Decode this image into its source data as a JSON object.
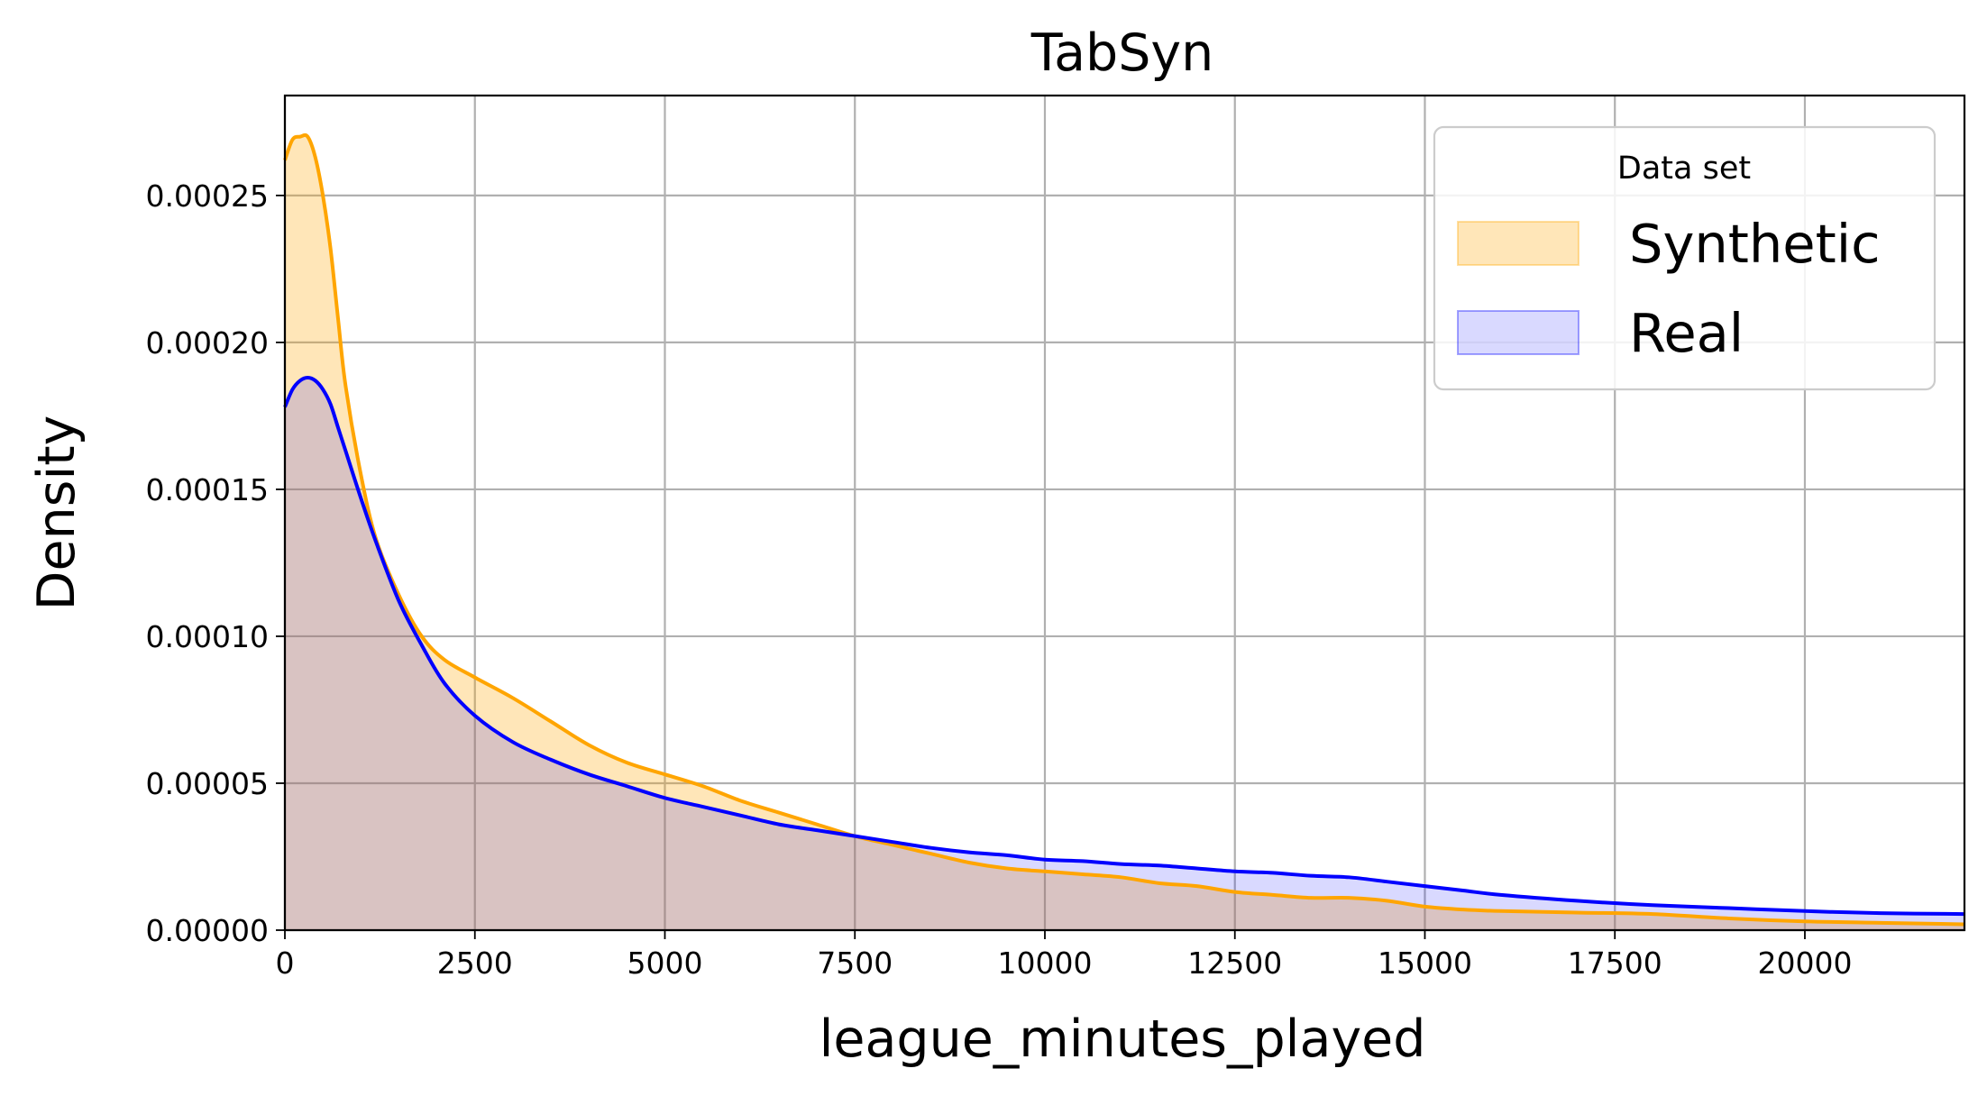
{
  "chart_data": {
    "type": "area",
    "title": "TabSyn",
    "xlabel": "league_minutes_played",
    "ylabel": "Density",
    "xlim": [
      0,
      22100
    ],
    "ylim": [
      0,
      0.000284
    ],
    "grid": true,
    "x_ticks": [
      0,
      2500,
      5000,
      7500,
      10000,
      12500,
      15000,
      17500,
      20000
    ],
    "x_tick_labels": [
      "0",
      "2500",
      "5000",
      "7500",
      "10000",
      "12500",
      "15000",
      "17500",
      "20000"
    ],
    "y_ticks": [
      0,
      5e-05,
      0.0001,
      0.00015,
      0.0002,
      0.00025
    ],
    "y_tick_labels": [
      "0.00000",
      "0.00005",
      "0.00010",
      "0.00015",
      "0.00020",
      "0.00025"
    ],
    "legend": {
      "title": "Data set",
      "position": "top-right"
    },
    "series": [
      {
        "name": "Synthetic",
        "line_color": "#FFA500",
        "fill_color": "#FFA500",
        "fill_opacity": 0.28,
        "x": [
          0,
          100,
          200,
          300,
          400,
          500,
          600,
          700,
          800,
          1000,
          1200,
          1500,
          1800,
          2100,
          2500,
          3000,
          3500,
          4000,
          4500,
          5000,
          5500,
          6000,
          6500,
          7000,
          7500,
          8000,
          8500,
          9000,
          9500,
          10000,
          10500,
          11000,
          11500,
          12000,
          12500,
          13000,
          13500,
          14000,
          14500,
          15000,
          15500,
          16000,
          17000,
          18000,
          19000,
          20000,
          21000,
          22100
        ],
        "y": [
          0.000262,
          0.000269,
          0.00027,
          0.00027,
          0.000263,
          0.00025,
          0.000232,
          0.000208,
          0.000185,
          0.000155,
          0.000133,
          0.000114,
          0.0001,
          9.2e-05,
          8.6e-05,
          7.9e-05,
          7.1e-05,
          6.3e-05,
          5.7e-05,
          5.3e-05,
          4.9e-05,
          4.4e-05,
          4e-05,
          3.6e-05,
          3.2e-05,
          2.9e-05,
          2.6e-05,
          2.3e-05,
          2.1e-05,
          2e-05,
          1.9e-05,
          1.8e-05,
          1.6e-05,
          1.5e-05,
          1.3e-05,
          1.2e-05,
          1.1e-05,
          1.1e-05,
          1e-05,
          8e-06,
          7e-06,
          6.5e-06,
          6e-06,
          5.5e-06,
          4e-06,
          3e-06,
          2.5e-06,
          2e-06
        ]
      },
      {
        "name": "Real",
        "line_color": "#0000FF",
        "fill_color": "#0000FF",
        "fill_opacity": 0.15,
        "x": [
          0,
          100,
          200,
          300,
          400,
          500,
          600,
          700,
          800,
          1000,
          1200,
          1500,
          1800,
          2100,
          2500,
          3000,
          3500,
          4000,
          4500,
          5000,
          5500,
          6000,
          6500,
          7000,
          7500,
          8000,
          8500,
          9000,
          9500,
          10000,
          10500,
          11000,
          11500,
          12000,
          12500,
          13000,
          13500,
          14000,
          14500,
          15000,
          15500,
          16000,
          17000,
          18000,
          19000,
          20000,
          21000,
          22100
        ],
        "y": [
          0.000178,
          0.000184,
          0.000187,
          0.000188,
          0.000187,
          0.000184,
          0.000179,
          0.000171,
          0.000163,
          0.000147,
          0.000132,
          0.000112,
          9.7e-05,
          8.4e-05,
          7.3e-05,
          6.4e-05,
          5.8e-05,
          5.3e-05,
          4.9e-05,
          4.5e-05,
          4.2e-05,
          3.9e-05,
          3.6e-05,
          3.4e-05,
          3.2e-05,
          3e-05,
          2.8e-05,
          2.65e-05,
          2.55e-05,
          2.4e-05,
          2.35e-05,
          2.25e-05,
          2.2e-05,
          2.1e-05,
          2e-05,
          1.95e-05,
          1.85e-05,
          1.8e-05,
          1.65e-05,
          1.5e-05,
          1.35e-05,
          1.2e-05,
          1e-05,
          8.5e-06,
          7.5e-06,
          6.5e-06,
          5.8e-06,
          5.5e-06
        ]
      }
    ]
  }
}
